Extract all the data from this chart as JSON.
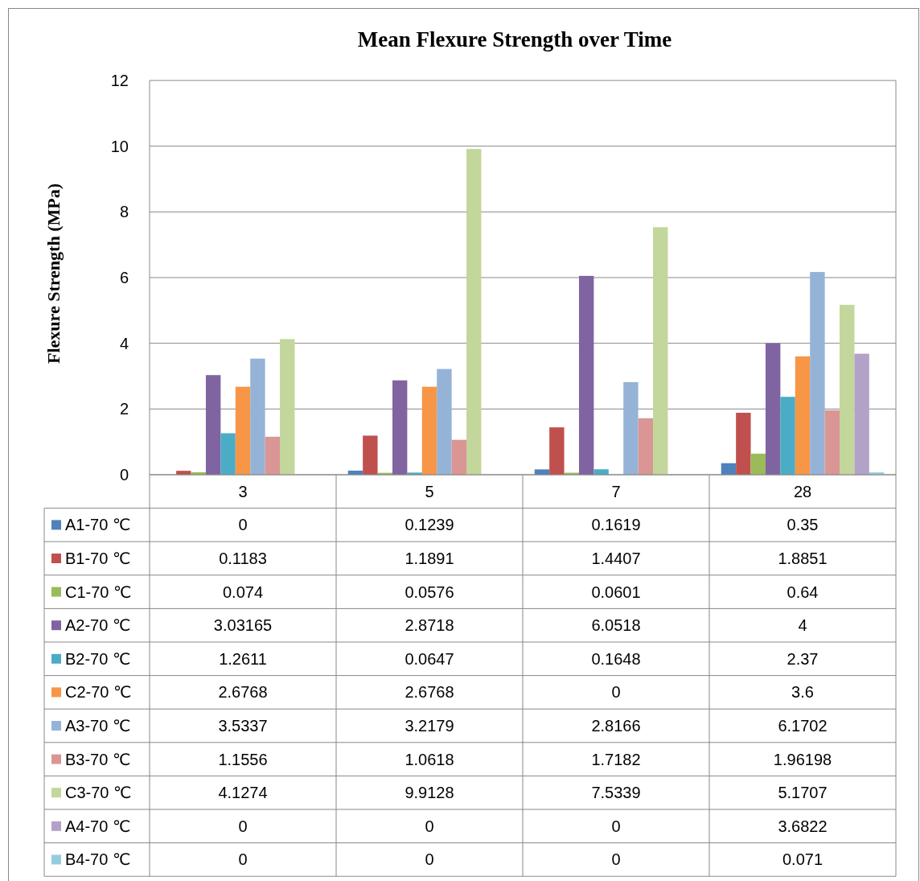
{
  "chart_data": {
    "type": "bar",
    "title": "Mean Flexure Strength over Time",
    "ylabel": "Flexure Strength (MPa)",
    "categories": [
      "3",
      "5",
      "7",
      "28"
    ],
    "series": [
      {
        "name": "A1-70 ℃",
        "color": "#4f81bd",
        "values": [
          0,
          0.1239,
          0.1619,
          0.35
        ]
      },
      {
        "name": "B1-70 ℃",
        "color": "#c0504d",
        "values": [
          0.1183,
          1.1891,
          1.4407,
          1.8851
        ]
      },
      {
        "name": "C1-70 ℃",
        "color": "#9bbb59",
        "values": [
          0.074,
          0.0576,
          0.0601,
          0.64
        ]
      },
      {
        "name": "A2-70 ℃",
        "color": "#8064a2",
        "values": [
          3.03165,
          2.8718,
          6.0518,
          4
        ]
      },
      {
        "name": "B2-70 ℃",
        "color": "#4bacc6",
        "values": [
          1.2611,
          0.0647,
          0.1648,
          2.37
        ]
      },
      {
        "name": "C2-70 ℃",
        "color": "#f79646",
        "values": [
          2.6768,
          2.6768,
          0,
          3.6
        ]
      },
      {
        "name": "A3-70 ℃",
        "color": "#95b3d7",
        "values": [
          3.5337,
          3.2179,
          2.8166,
          6.1702
        ]
      },
      {
        "name": "B3-70 ℃",
        "color": "#d99694",
        "values": [
          1.1556,
          1.0618,
          1.7182,
          1.96198
        ]
      },
      {
        "name": "C3-70 ℃",
        "color": "#c3d69b",
        "values": [
          4.1274,
          9.9128,
          7.5339,
          5.1707
        ]
      },
      {
        "name": "A4-70 ℃",
        "color": "#b3a2c7",
        "values": [
          0,
          0,
          0,
          3.6822
        ]
      },
      {
        "name": "B4-70 ℃",
        "color": "#93cddd",
        "values": [
          0,
          0,
          0,
          0.071
        ]
      }
    ],
    "ylim": [
      0,
      12
    ],
    "yticks": [
      0,
      2,
      4,
      6,
      8,
      10,
      12
    ],
    "grid": "y",
    "legend": "bottom",
    "data_labels": true
  }
}
